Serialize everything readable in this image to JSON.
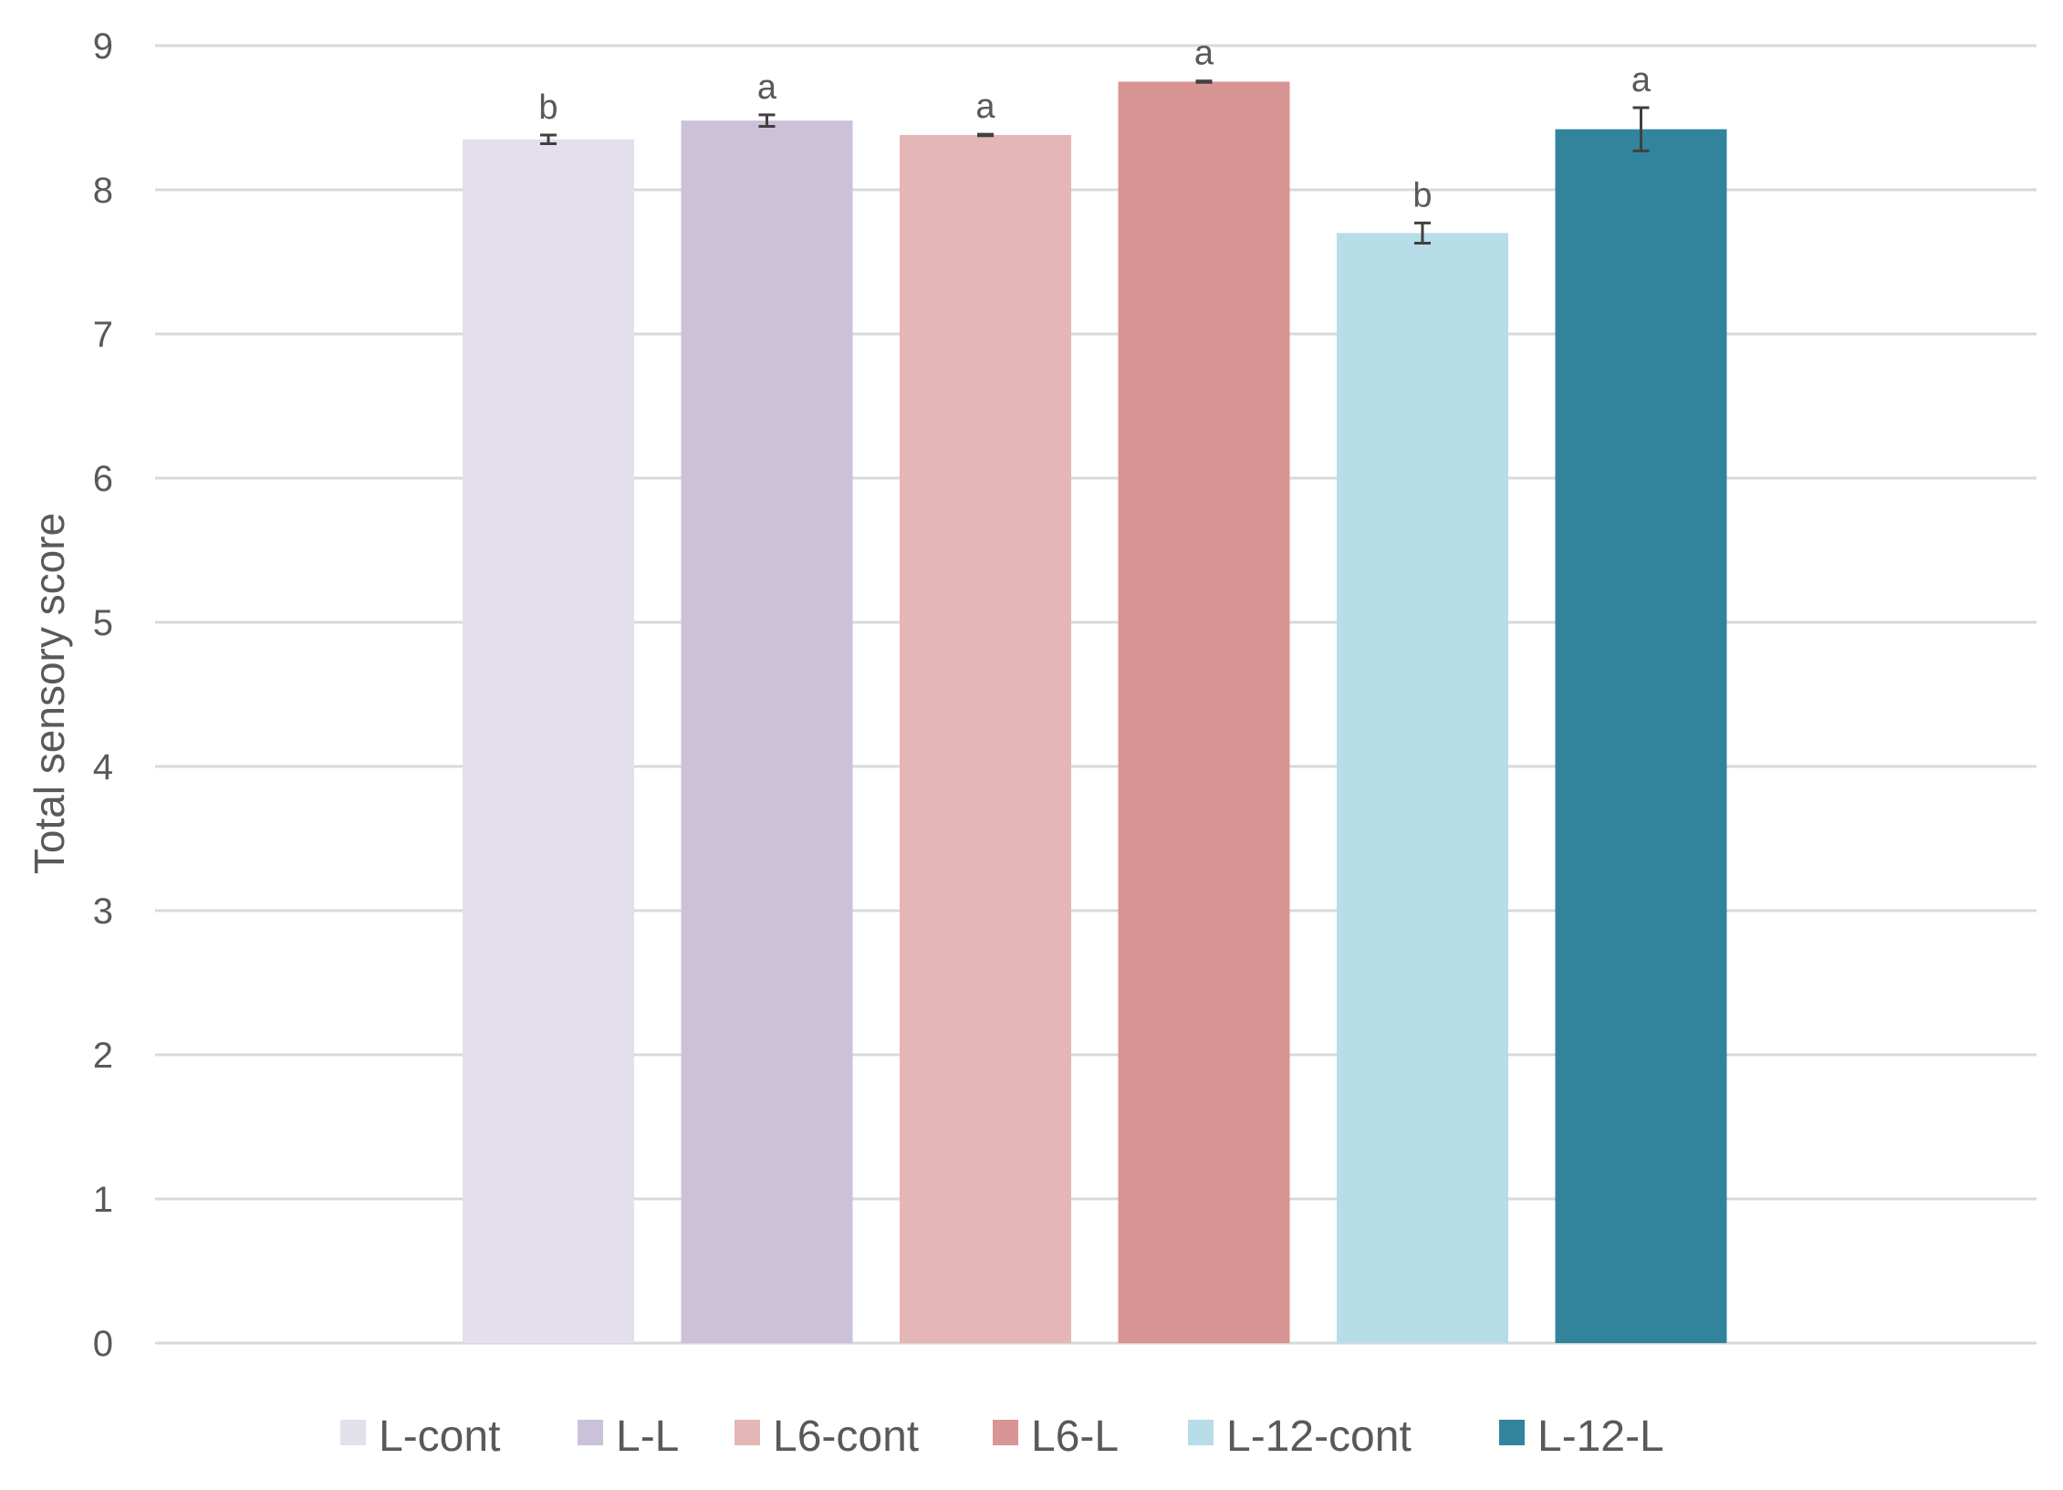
{
  "chart_data": {
    "type": "bar",
    "ylabel": "Total sensory score",
    "ylim": [
      0,
      9
    ],
    "yticks": [
      0,
      1,
      2,
      3,
      4,
      5,
      6,
      7,
      8,
      9
    ],
    "grid": true,
    "legend_position": "bottom",
    "series": [
      {
        "name": "L-cont",
        "value": 8.35,
        "error": 0.03,
        "significance": "b",
        "color": "#e3dfeb"
      },
      {
        "name": "L-L",
        "value": 8.48,
        "error": 0.04,
        "significance": "a",
        "color": "#cbc1d9"
      },
      {
        "name": "L6-cont",
        "value": 8.38,
        "error": 0.005,
        "significance": "a",
        "color": "#e5b6b6"
      },
      {
        "name": "L6-L",
        "value": 8.75,
        "error": 0.005,
        "significance": "a",
        "color": "#d99494"
      },
      {
        "name": "L-12-cont",
        "value": 7.7,
        "error": 0.07,
        "significance": "b",
        "color": "#b7dde8"
      },
      {
        "name": "L-12-L",
        "value": 8.42,
        "error": 0.15,
        "significance": "a",
        "color": "#31849b"
      }
    ]
  }
}
